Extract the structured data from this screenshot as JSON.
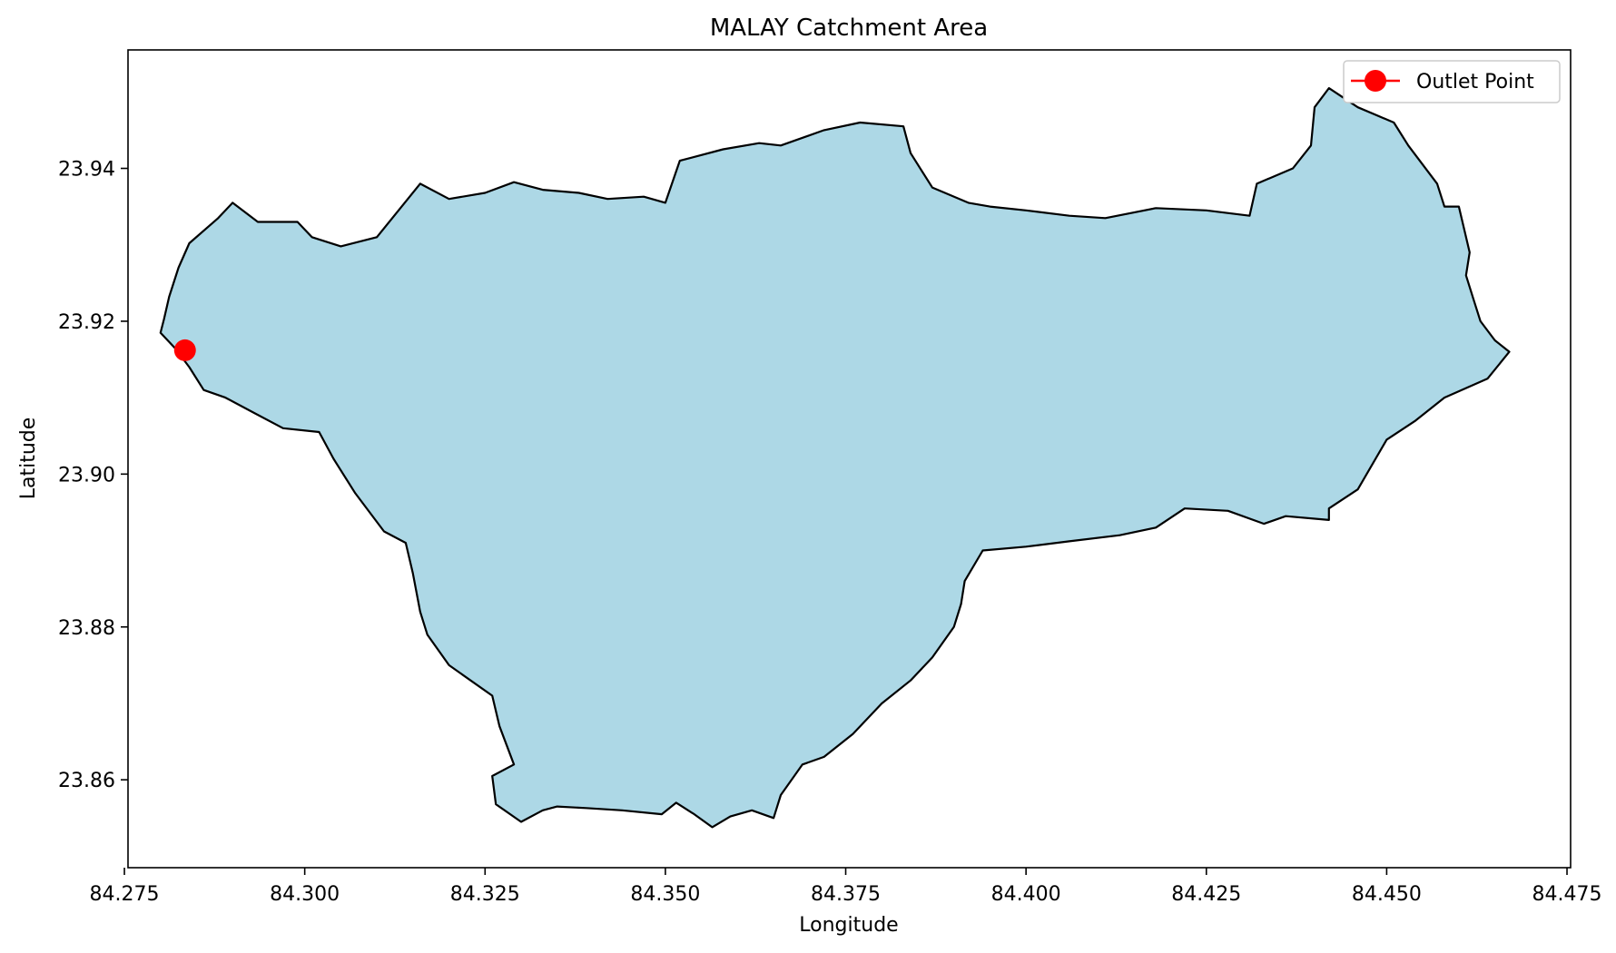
{
  "chart_data": {
    "type": "map",
    "title": "MALAY Catchment Area",
    "xlabel": "Longitude",
    "ylabel": "Latitude",
    "xlim": [
      84.2755,
      84.4755
    ],
    "ylim": [
      23.8485,
      23.9555
    ],
    "xticks": [
      "84.275",
      "84.300",
      "84.325",
      "84.350",
      "84.375",
      "84.400",
      "84.425",
      "84.450",
      "84.475"
    ],
    "yticks": [
      "23.86",
      "23.88",
      "23.90",
      "23.92",
      "23.94"
    ],
    "grid": false,
    "legend": {
      "placement": "top-right",
      "entries": [
        {
          "label": "Outlet Point",
          "color": "#ff0000",
          "marker": "circle"
        }
      ]
    },
    "catchment": {
      "fill_color": "#add8e6",
      "edge_color": "#000000",
      "boundary": [
        [
          84.2805,
          23.9203
        ],
        [
          84.2812,
          23.9232
        ],
        [
          84.2825,
          23.927
        ],
        [
          84.284,
          23.9302
        ],
        [
          84.288,
          23.9335
        ],
        [
          84.29,
          23.9355
        ],
        [
          84.2935,
          23.933
        ],
        [
          84.299,
          23.933
        ],
        [
          84.301,
          23.931
        ],
        [
          84.305,
          23.9298
        ],
        [
          84.31,
          23.931
        ],
        [
          84.316,
          23.938
        ],
        [
          84.32,
          23.936
        ],
        [
          84.325,
          23.9368
        ],
        [
          84.329,
          23.9382
        ],
        [
          84.333,
          23.9372
        ],
        [
          84.338,
          23.9368
        ],
        [
          84.342,
          23.936
        ],
        [
          84.347,
          23.9363
        ],
        [
          84.35,
          23.9355
        ],
        [
          84.352,
          23.941
        ],
        [
          84.358,
          23.9425
        ],
        [
          84.363,
          23.9433
        ],
        [
          84.366,
          23.943
        ],
        [
          84.372,
          23.945
        ],
        [
          84.377,
          23.946
        ],
        [
          84.383,
          23.9455
        ],
        [
          84.384,
          23.942
        ],
        [
          84.387,
          23.9375
        ],
        [
          84.392,
          23.9355
        ],
        [
          84.395,
          23.935
        ],
        [
          84.4,
          23.9345
        ],
        [
          84.406,
          23.9338
        ],
        [
          84.411,
          23.9335
        ],
        [
          84.418,
          23.9348
        ],
        [
          84.425,
          23.9345
        ],
        [
          84.431,
          23.9338
        ],
        [
          84.432,
          23.938
        ],
        [
          84.437,
          23.94
        ],
        [
          84.4395,
          23.943
        ],
        [
          84.44,
          23.948
        ],
        [
          84.442,
          23.9505
        ],
        [
          84.446,
          23.948
        ],
        [
          84.451,
          23.946
        ],
        [
          84.453,
          23.943
        ],
        [
          84.457,
          23.938
        ],
        [
          84.458,
          23.935
        ],
        [
          84.46,
          23.935
        ],
        [
          84.4615,
          23.929
        ],
        [
          84.461,
          23.926
        ],
        [
          84.462,
          23.923
        ],
        [
          84.463,
          23.92
        ],
        [
          84.465,
          23.9175
        ],
        [
          84.467,
          23.916
        ],
        [
          84.464,
          23.9125
        ],
        [
          84.458,
          23.91
        ],
        [
          84.454,
          23.907
        ],
        [
          84.45,
          23.9045
        ],
        [
          84.446,
          23.898
        ],
        [
          84.442,
          23.8955
        ],
        [
          84.442,
          23.894
        ],
        [
          84.436,
          23.8945
        ],
        [
          84.433,
          23.8935
        ],
        [
          84.428,
          23.8952
        ],
        [
          84.422,
          23.8955
        ],
        [
          84.418,
          23.893
        ],
        [
          84.413,
          23.892
        ],
        [
          84.406,
          23.8912
        ],
        [
          84.4,
          23.8905
        ],
        [
          84.394,
          23.89
        ],
        [
          84.3915,
          23.886
        ],
        [
          84.391,
          23.883
        ],
        [
          84.39,
          23.88
        ],
        [
          84.387,
          23.876
        ],
        [
          84.384,
          23.873
        ],
        [
          84.38,
          23.87
        ],
        [
          84.376,
          23.866
        ],
        [
          84.372,
          23.863
        ],
        [
          84.369,
          23.862
        ],
        [
          84.366,
          23.858
        ],
        [
          84.365,
          23.855
        ],
        [
          84.362,
          23.856
        ],
        [
          84.359,
          23.8552
        ],
        [
          84.3565,
          23.8538
        ],
        [
          84.354,
          23.8555
        ],
        [
          84.3515,
          23.857
        ],
        [
          84.3495,
          23.8555
        ],
        [
          84.344,
          23.856
        ],
        [
          84.339,
          23.8563
        ],
        [
          84.335,
          23.8565
        ],
        [
          84.333,
          23.856
        ],
        [
          84.33,
          23.8545
        ],
        [
          84.3265,
          23.8568
        ],
        [
          84.326,
          23.8605
        ],
        [
          84.329,
          23.862
        ],
        [
          84.327,
          23.867
        ],
        [
          84.326,
          23.871
        ],
        [
          84.32,
          23.875
        ],
        [
          84.317,
          23.879
        ],
        [
          84.316,
          23.882
        ],
        [
          84.315,
          23.887
        ],
        [
          84.314,
          23.891
        ],
        [
          84.311,
          23.8925
        ],
        [
          84.307,
          23.8975
        ],
        [
          84.304,
          23.902
        ],
        [
          84.302,
          23.9055
        ],
        [
          84.297,
          23.906
        ],
        [
          84.293,
          23.908
        ],
        [
          84.289,
          23.91
        ],
        [
          84.286,
          23.911
        ],
        [
          84.284,
          23.914
        ],
        [
          84.282,
          23.9165
        ],
        [
          84.28,
          23.9185
        ]
      ]
    },
    "series": [
      {
        "name": "Outlet Point",
        "color": "#ff0000",
        "points": [
          {
            "x": 84.2834,
            "y": 23.9162
          }
        ]
      }
    ]
  }
}
